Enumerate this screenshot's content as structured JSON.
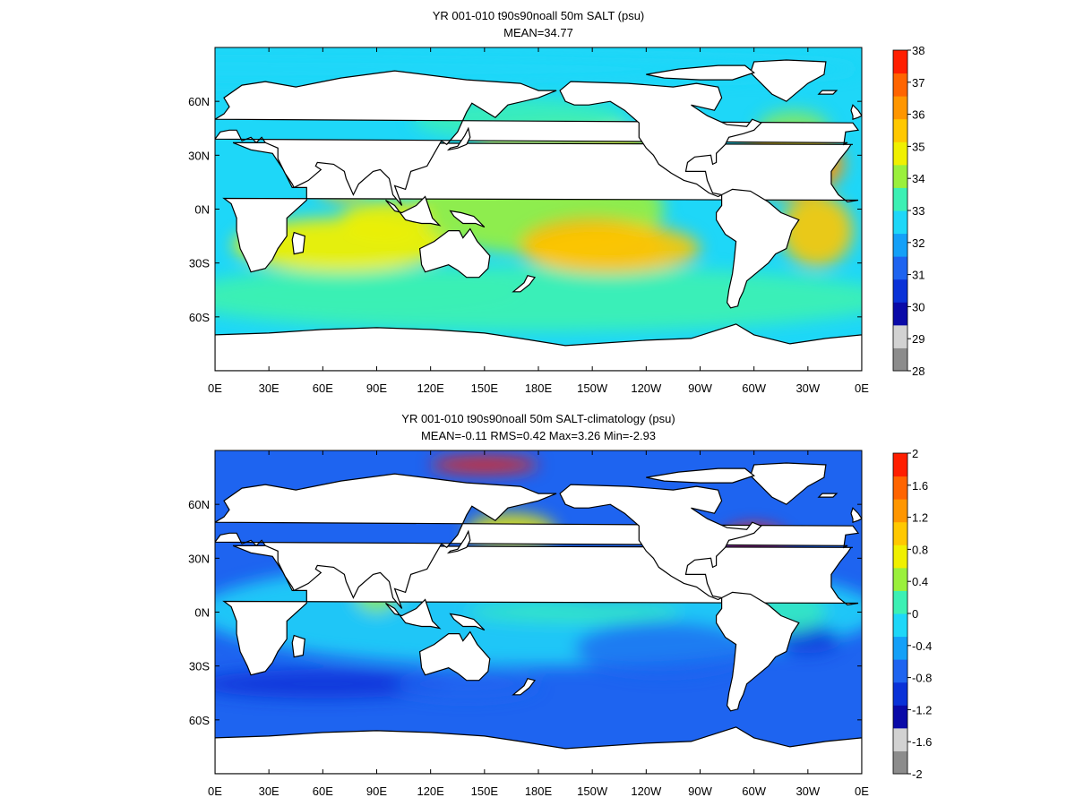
{
  "panels": [
    {
      "title": "YR 001-010 t90s90noall 50m SALT (psu)",
      "subtitle": "MEAN=34.77",
      "x_ticks": [
        "0E",
        "30E",
        "60E",
        "90E",
        "120E",
        "150E",
        "180E",
        "150W",
        "120W",
        "90W",
        "60W",
        "30W",
        "0E"
      ],
      "y_ticks": [
        "60N",
        "30N",
        "0N",
        "30S",
        "60S"
      ],
      "colorbar": {
        "labels": [
          "38",
          "37",
          "36",
          "35",
          "34",
          "33",
          "32",
          "31",
          "30",
          "29",
          "28"
        ],
        "colors": [
          "#8c8c8c",
          "#d2d2d2",
          "#0a0aa8",
          "#0a32d8",
          "#1e64f0",
          "#14a0f8",
          "#1ed7f8",
          "#3cf0b4",
          "#9af03c",
          "#f0f000",
          "#ffc800",
          "#ff9600",
          "#ff6400",
          "#ff1e00"
        ]
      },
      "field_colors": [
        "#1ed7f8",
        "#3cf0b4",
        "#9af03c",
        "#f0f000",
        "#ffc800",
        "#ff9600"
      ]
    },
    {
      "title": "YR 001-010 t90s90noall 50m SALT-climatology (psu)",
      "subtitle": "MEAN=-0.11   RMS=0.42   Max=3.26   Min=-2.93",
      "x_ticks": [
        "0E",
        "30E",
        "60E",
        "90E",
        "120E",
        "150E",
        "180E",
        "150W",
        "120W",
        "90W",
        "60W",
        "30W",
        "0E"
      ],
      "y_ticks": [
        "60N",
        "30N",
        "0N",
        "30S",
        "60S"
      ],
      "colorbar": {
        "labels": [
          "2",
          "1.6",
          "1.2",
          "0.8",
          "0.4",
          "0",
          "-0.4",
          "-0.8",
          "-1.2",
          "-1.6",
          "-2"
        ],
        "colors": [
          "#8c8c8c",
          "#d2d2d2",
          "#0a0aa8",
          "#0a32d8",
          "#1e64f0",
          "#14a0f8",
          "#1ed7f8",
          "#3cf0b4",
          "#9af03c",
          "#f0f000",
          "#ffc800",
          "#ff9600",
          "#ff6400",
          "#ff1e00"
        ]
      },
      "field_colors": [
        "#1e64f0",
        "#14a0f8",
        "#1ed7f8",
        "#3cf0b4",
        "#9af03c",
        "#f0f000",
        "#ff1e00",
        "#0a32d8"
      ]
    }
  ]
}
